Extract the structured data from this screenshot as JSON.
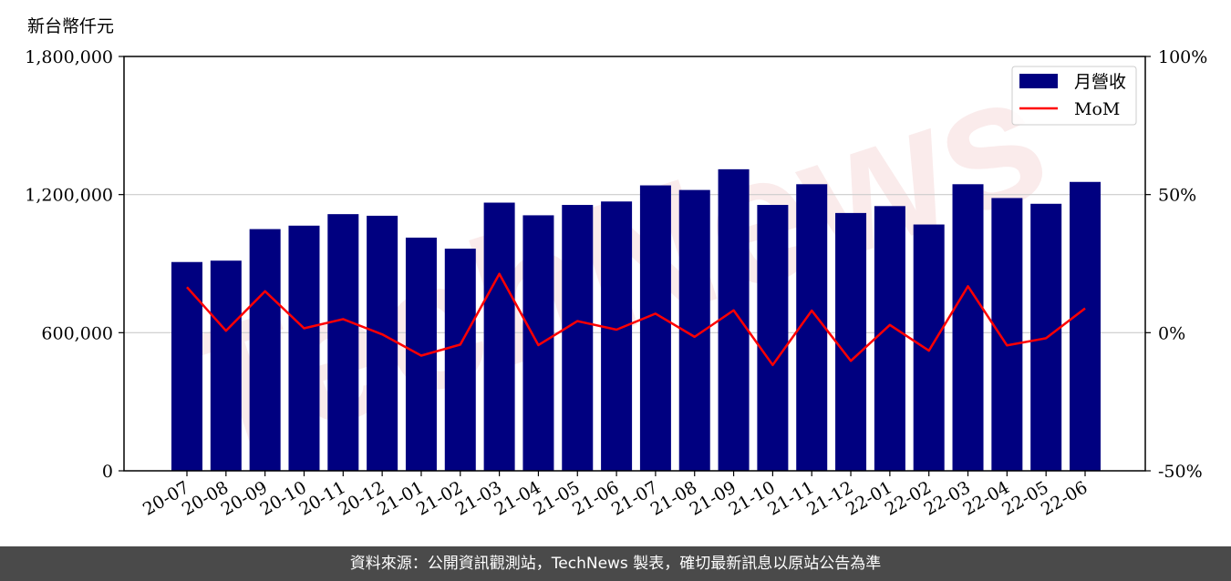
{
  "unit_label": "新台幣仟元",
  "footer_text": "資料來源：公開資訊觀測站，TechNews 製表，確切最新訊息以原站公告為準",
  "watermark_text": "TechNews",
  "colors": {
    "bar": "#000080",
    "line": "#ff0000",
    "grid": "#cccccc",
    "footer_bg": "#4a4a4a"
  },
  "chart_data": {
    "type": "bar",
    "categories": [
      "20-07",
      "20-08",
      "20-09",
      "20-10",
      "20-11",
      "20-12",
      "21-01",
      "21-02",
      "21-03",
      "21-04",
      "21-05",
      "21-06",
      "21-07",
      "21-08",
      "21-09",
      "21-10",
      "21-11",
      "21-12",
      "22-01",
      "22-02",
      "22-03",
      "22-04",
      "22-05",
      "22-06"
    ],
    "series": [
      {
        "name": "月營收",
        "type": "bar",
        "axis": "left",
        "values": [
          907000,
          913000,
          1050000,
          1065000,
          1115000,
          1108000,
          1013000,
          965000,
          1165000,
          1110000,
          1155000,
          1170000,
          1240000,
          1220000,
          1310000,
          1155000,
          1245000,
          1120000,
          1150000,
          1070000,
          1245000,
          1185000,
          1160000,
          1255000
        ]
      },
      {
        "name": "MoM",
        "type": "line",
        "axis": "right",
        "values": [
          16.5,
          0.7,
          15.0,
          1.6,
          4.9,
          -0.6,
          -8.3,
          -4.3,
          21.3,
          -4.5,
          4.2,
          1.1,
          6.9,
          -1.5,
          8.1,
          -11.7,
          8.0,
          -10.2,
          2.8,
          -6.5,
          16.8,
          -4.6,
          -2.0,
          8.8
        ]
      }
    ],
    "yleft": {
      "lim": [
        0,
        1800000
      ],
      "ticks": [
        0,
        600000,
        1200000,
        1800000
      ],
      "tick_labels": [
        "0",
        "600,000",
        "1,200,000",
        "1,800,000"
      ]
    },
    "yright": {
      "lim": [
        -50,
        100
      ],
      "ticks": [
        -50,
        0,
        50,
        100
      ],
      "tick_labels": [
        "-50%",
        "0%",
        "50%",
        "100%"
      ]
    },
    "grid": "horizontal",
    "legend": {
      "position": "top-right",
      "entries": [
        "月營收",
        "MoM"
      ]
    }
  }
}
